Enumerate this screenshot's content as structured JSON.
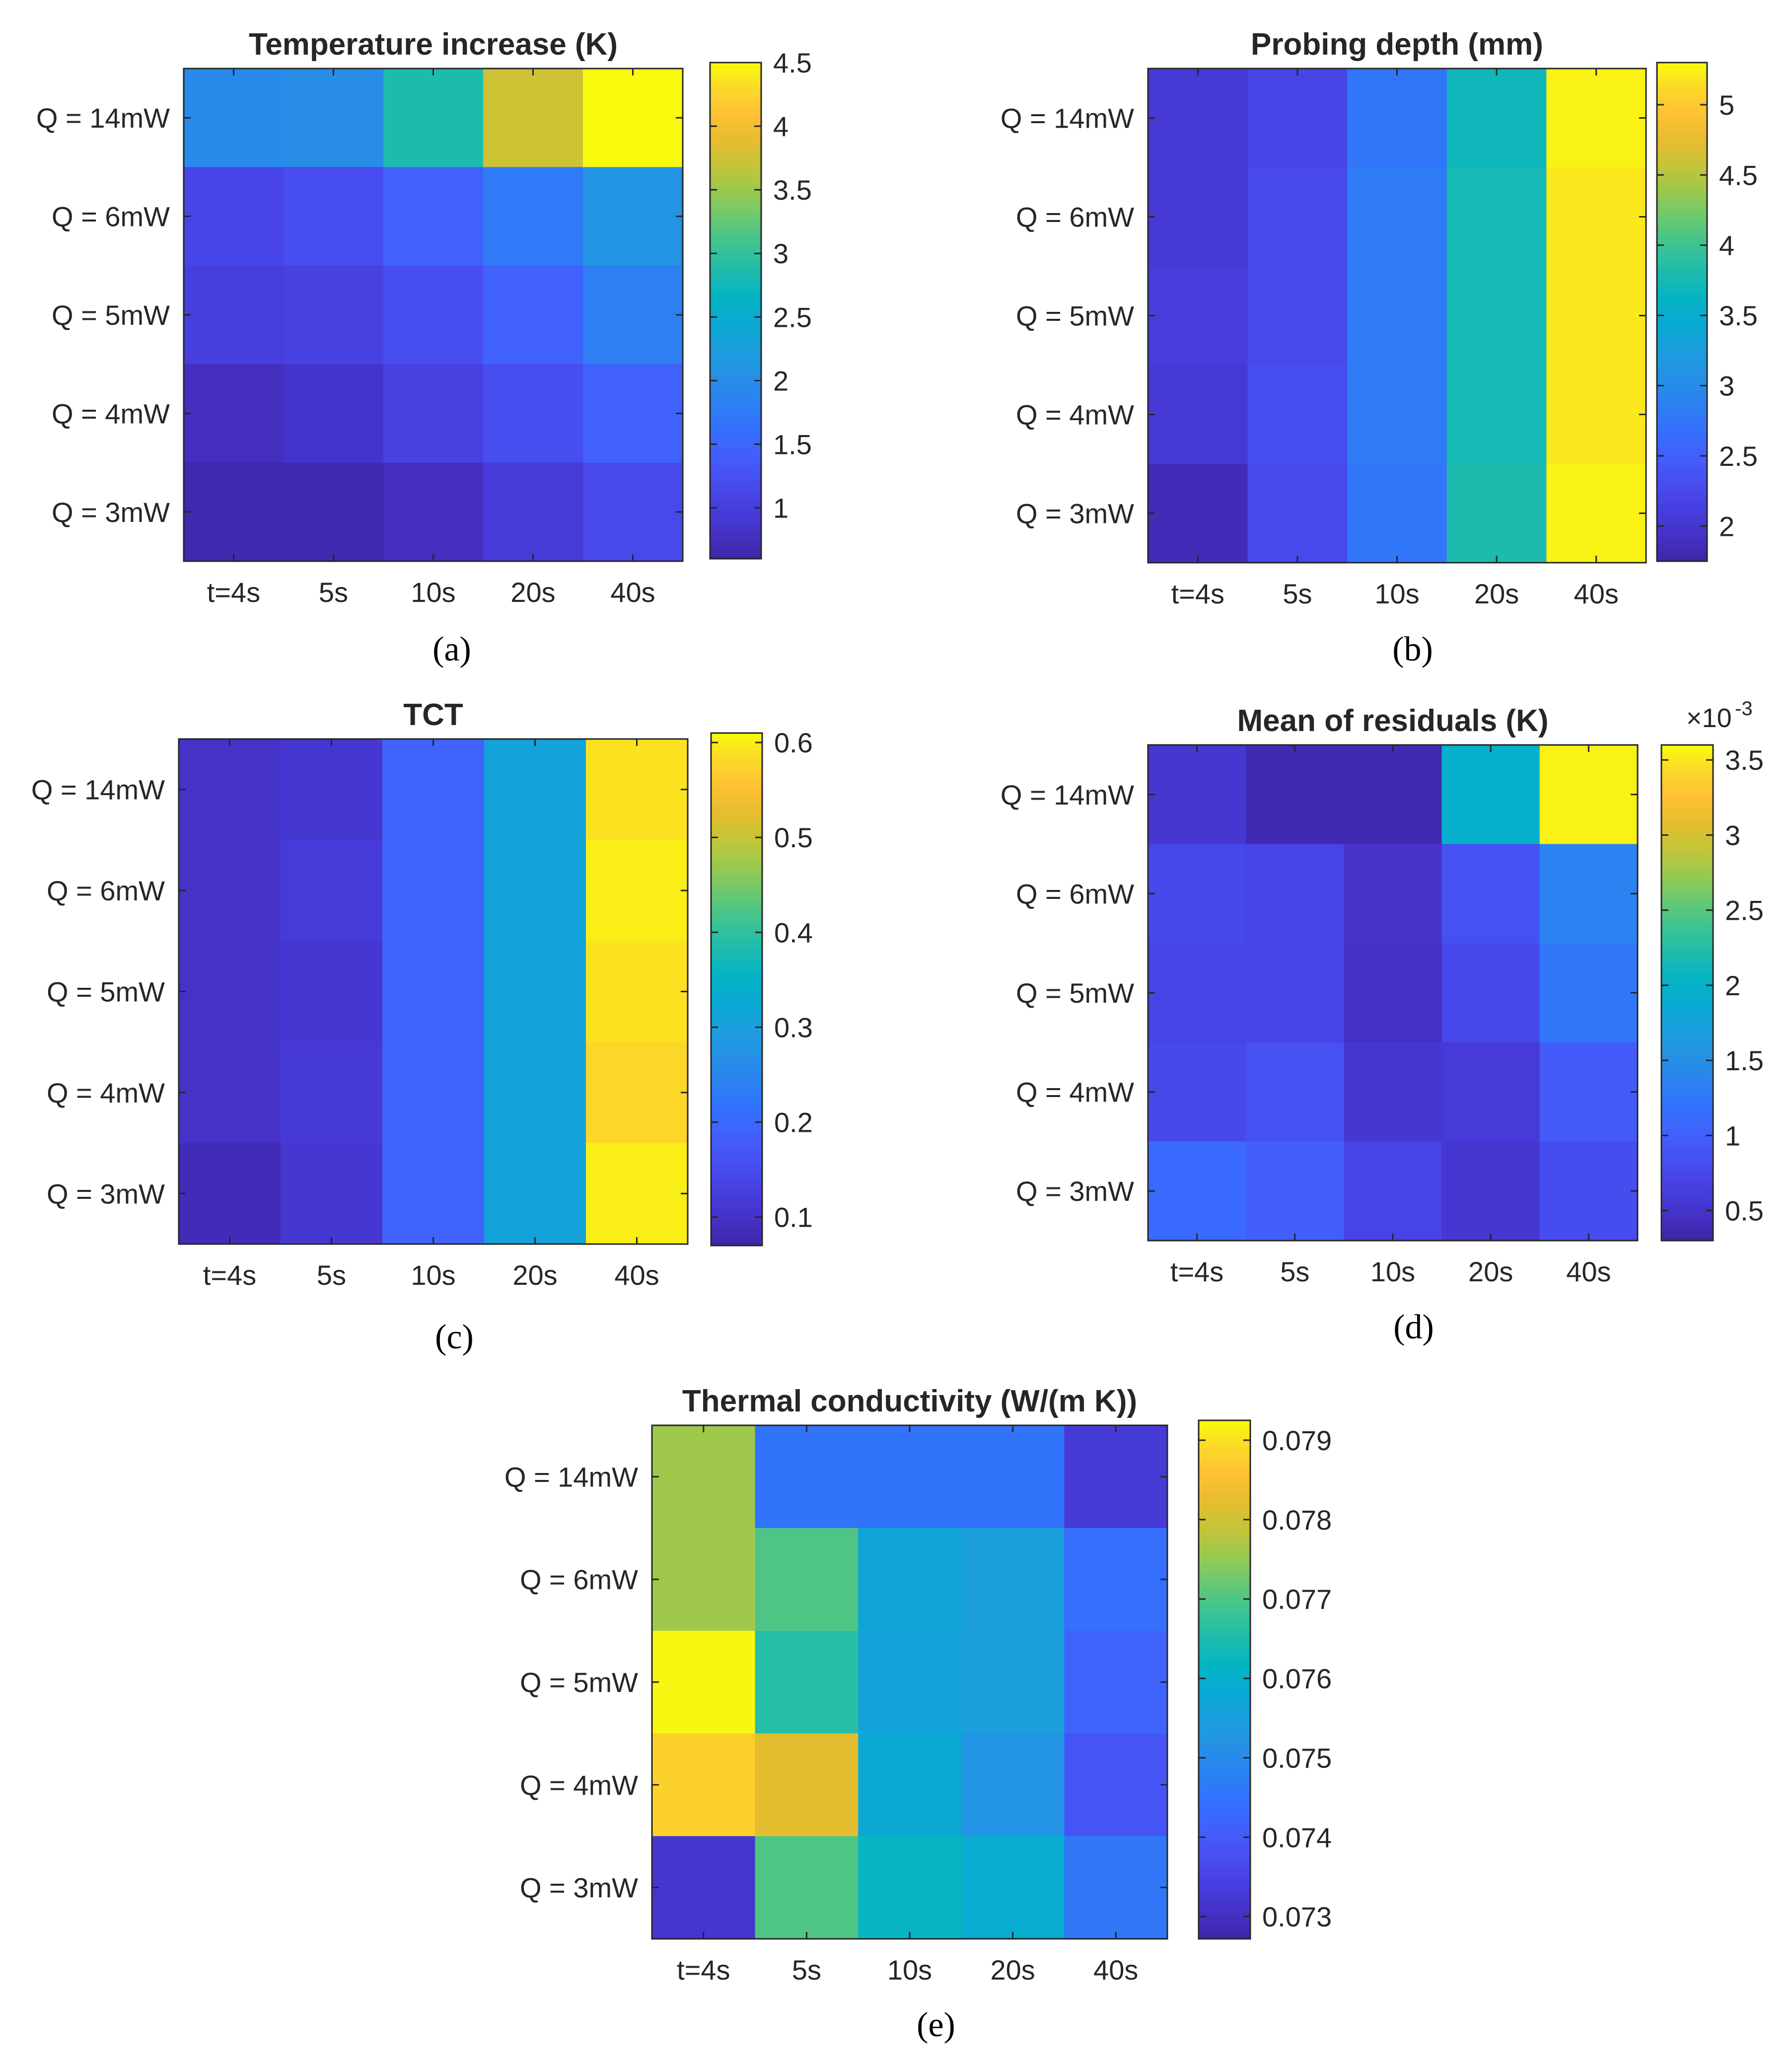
{
  "chart_data": [
    {
      "type": "heatmap",
      "panel_label": "(a)",
      "title": "Temperature increase (K)",
      "x": [
        "t=4s",
        "5s",
        "10s",
        "20s",
        "40s"
      ],
      "y": [
        "Q = 14mW",
        "Q = 6mW",
        "Q = 5mW",
        "Q = 4mW",
        "Q = 3mW"
      ],
      "values": [
        [
          1.95,
          2.0,
          2.85,
          3.75,
          4.5
        ],
        [
          1.1,
          1.2,
          1.45,
          1.75,
          2.1
        ],
        [
          1.0,
          1.05,
          1.2,
          1.45,
          1.8
        ],
        [
          0.75,
          0.85,
          1.05,
          1.2,
          1.45
        ],
        [
          0.65,
          0.65,
          0.75,
          0.95,
          1.15
        ]
      ],
      "clim": [
        0.6,
        4.5
      ],
      "colorbar_ticks": [
        1,
        1.5,
        2,
        2.5,
        3,
        3.5,
        4,
        4.5
      ],
      "colorbar_tick_labels": [
        "1",
        "1.5",
        "2",
        "2.5",
        "3",
        "3.5",
        "4",
        "4.5"
      ]
    },
    {
      "type": "heatmap",
      "panel_label": "(b)",
      "title": "Probing depth (mm)",
      "x": [
        "t=4s",
        "5s",
        "10s",
        "20s",
        "40s"
      ],
      "y": [
        "Q = 14mW",
        "Q = 6mW",
        "Q = 5mW",
        "Q = 4mW",
        "Q = 3mW"
      ],
      "values": [
        [
          2.05,
          2.2,
          2.75,
          3.7,
          5.25
        ],
        [
          2.05,
          2.25,
          2.8,
          3.75,
          5.2
        ],
        [
          2.1,
          2.25,
          2.8,
          3.75,
          5.2
        ],
        [
          2.05,
          2.3,
          2.8,
          3.75,
          5.2
        ],
        [
          1.85,
          2.25,
          2.75,
          3.8,
          5.25
        ]
      ],
      "clim": [
        1.75,
        5.3
      ],
      "colorbar_ticks": [
        2,
        2.5,
        3,
        3.5,
        4,
        4.5,
        5
      ],
      "colorbar_tick_labels": [
        "2",
        "2.5",
        "3",
        "3.5",
        "4",
        "4.5",
        "5"
      ]
    },
    {
      "type": "heatmap",
      "panel_label": "(c)",
      "title": "TCT",
      "x": [
        "t=4s",
        "5s",
        "10s",
        "20s",
        "40s"
      ],
      "y": [
        "Q = 14mW",
        "Q = 6mW",
        "Q = 5mW",
        "Q = 4mW",
        "Q = 3mW"
      ],
      "values": [
        [
          0.1,
          0.11,
          0.19,
          0.31,
          0.59
        ],
        [
          0.1,
          0.12,
          0.19,
          0.31,
          0.6
        ],
        [
          0.1,
          0.11,
          0.19,
          0.31,
          0.59
        ],
        [
          0.1,
          0.115,
          0.19,
          0.31,
          0.58
        ],
        [
          0.085,
          0.11,
          0.19,
          0.31,
          0.6
        ]
      ],
      "clim": [
        0.07,
        0.61
      ],
      "colorbar_ticks": [
        0.1,
        0.2,
        0.3,
        0.4,
        0.5,
        0.6
      ],
      "colorbar_tick_labels": [
        "0.1",
        "0.2",
        "0.3",
        "0.4",
        "0.5",
        "0.6"
      ]
    },
    {
      "type": "heatmap",
      "panel_label": "(d)",
      "title": "Mean of residuals (K)",
      "exponent_label": "×10",
      "exponent_power": "-3",
      "x": [
        "t=4s",
        "5s",
        "10s",
        "20s",
        "40s"
      ],
      "y": [
        "Q = 14mW",
        "Q = 6mW",
        "Q = 5mW",
        "Q = 4mW",
        "Q = 3mW"
      ],
      "values": [
        [
          0.55,
          0.35,
          0.35,
          1.95,
          3.55
        ],
        [
          0.75,
          0.7,
          0.5,
          0.85,
          1.35
        ],
        [
          0.7,
          0.7,
          0.45,
          0.75,
          1.25
        ],
        [
          0.75,
          0.85,
          0.55,
          0.6,
          0.95
        ],
        [
          1.1,
          1.0,
          0.7,
          0.55,
          0.8
        ]
      ],
      "clim": [
        0.3,
        3.6
      ],
      "colorbar_ticks": [
        0.5,
        1,
        1.5,
        2,
        2.5,
        3,
        3.5
      ],
      "colorbar_tick_labels": [
        "0.5",
        "1",
        "1.5",
        "2",
        "2.5",
        "3",
        "3.5"
      ]
    },
    {
      "type": "heatmap",
      "panel_label": "(e)",
      "title": "Thermal conductivity (W/(m K))",
      "x": [
        "t=4s",
        "5s",
        "10s",
        "20s",
        "40s"
      ],
      "y": [
        "Q = 14mW",
        "Q = 6mW",
        "Q = 5mW",
        "Q = 4mW",
        "Q = 3mW"
      ],
      "values": [
        [
          0.0776,
          0.0745,
          0.0745,
          0.0745,
          0.0733
        ],
        [
          0.0776,
          0.077,
          0.0757,
          0.0755,
          0.0744
        ],
        [
          0.0792,
          0.0766,
          0.0756,
          0.0755,
          0.0742
        ],
        [
          0.0788,
          0.0782,
          0.0758,
          0.0752,
          0.0739
        ],
        [
          0.0732,
          0.077,
          0.0762,
          0.0759,
          0.0746
        ]
      ],
      "clim": [
        0.07272,
        0.07925
      ],
      "colorbar_ticks": [
        0.073,
        0.074,
        0.075,
        0.076,
        0.077,
        0.078,
        0.079
      ],
      "colorbar_tick_labels": [
        "0.073",
        "0.074",
        "0.075",
        "0.076",
        "0.077",
        "0.078",
        "0.079"
      ]
    }
  ]
}
